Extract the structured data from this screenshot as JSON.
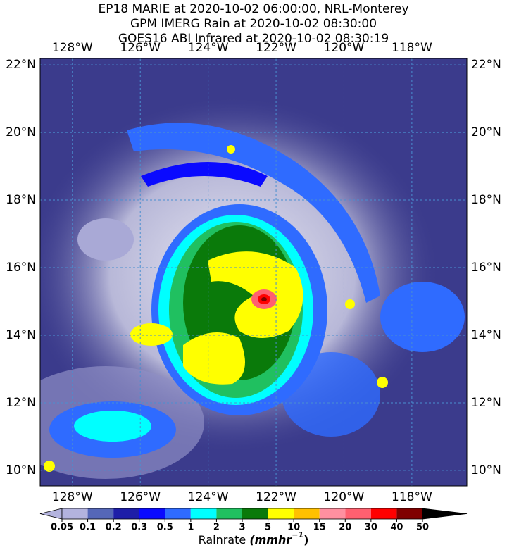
{
  "header": {
    "lines": [
      "EP18 MARIE at 2020-10-02 06:00:00, NRL-Monterey",
      "GPM IMERG Rain at 2020-10-02 08:30:00",
      "GOES16 ABI Infrared at 2020-10-02 08:30:19"
    ]
  },
  "map": {
    "lonlim": [
      -128.95,
      -116.38
    ],
    "latlim": [
      9.54,
      22.19
    ],
    "longitudes": [
      {
        "value": -128,
        "label": "128°W"
      },
      {
        "value": -126,
        "label": "126°W"
      },
      {
        "value": -124,
        "label": "124°W"
      },
      {
        "value": -122,
        "label": "122°W"
      },
      {
        "value": -120,
        "label": "120°W"
      },
      {
        "value": -118,
        "label": "118°W"
      }
    ],
    "latitudes": [
      {
        "value": 22,
        "label": "22°N"
      },
      {
        "value": 20,
        "label": "20°N"
      },
      {
        "value": 18,
        "label": "18°N"
      },
      {
        "value": 16,
        "label": "16°N"
      },
      {
        "value": 14,
        "label": "14°N"
      },
      {
        "value": 12,
        "label": "12°N"
      },
      {
        "value": 10,
        "label": "10°N"
      }
    ]
  },
  "colorbar": {
    "ticks": [
      0.05,
      0.1,
      0.2,
      0.3,
      0.5,
      1,
      2,
      3,
      5,
      10,
      15,
      20,
      30,
      40,
      50
    ],
    "colors": [
      "#b3b3de",
      "#b3b3de",
      "#5567b8",
      "#1e1ea8",
      "#0a0aff",
      "#2f6bff",
      "#00ffff",
      "#20c060",
      "#0a7a0a",
      "#ffff00",
      "#ffc000",
      "#ff90a0",
      "#ff6070",
      "#ff0000",
      "#800000",
      "#000000"
    ],
    "label": "Rainrate",
    "unit": [
      "(mmhr",
      "−1",
      ")"
    ]
  }
}
